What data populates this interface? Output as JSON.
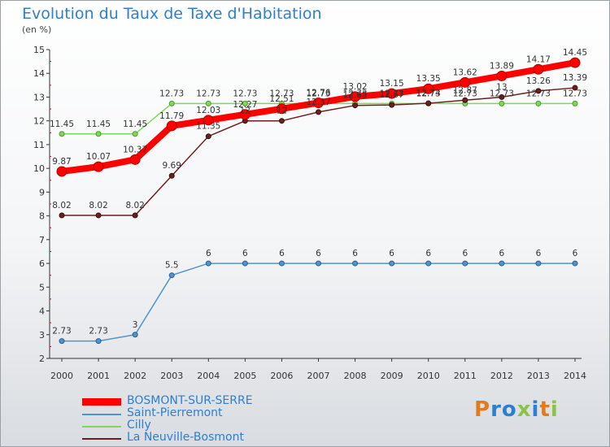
{
  "title": "Evolution du Taux de Taxe d'Habitation",
  "subtitle": "(en %)",
  "brand": {
    "text": "Proxiti"
  },
  "chart_data": {
    "type": "line",
    "title": "Evolution du Taux de Taxe d'Habitation",
    "ylabel": "(en %)",
    "ylim": [
      2,
      15
    ],
    "grid": false,
    "legend_position": "bottom",
    "x": [
      "2000",
      "2001",
      "2002",
      "2003",
      "2004",
      "2005",
      "2006",
      "2007",
      "2008",
      "2009",
      "2010",
      "2011",
      "2012",
      "2013",
      "2014"
    ],
    "yticks": [
      "2",
      "3",
      "4",
      "5",
      "6",
      "7",
      "8",
      "9",
      "10",
      "11",
      "12",
      "13",
      "14",
      "15"
    ],
    "series": [
      {
        "name": "BOSMONT-SUR-SERRE",
        "color": "#ff0000",
        "values": [
          9.87,
          10.07,
          10.37,
          11.79,
          12.03,
          12.27,
          12.51,
          12.76,
          13.02,
          13.15,
          13.35,
          13.62,
          13.89,
          14.17,
          14.45
        ],
        "labels": [
          "9.87",
          "10.07",
          "10.37",
          "11.79",
          "12.03",
          "12.27",
          "12.51",
          "12.76",
          "13.02",
          "13.15",
          "13.35",
          "13.62",
          "13.89",
          "14.17",
          "14.45"
        ]
      },
      {
        "name": "Saint-Pierremont",
        "color": "#4f94cd",
        "values": [
          2.73,
          2.73,
          3,
          5.5,
          6,
          6,
          6,
          6,
          6,
          6,
          6,
          6,
          6,
          6,
          6
        ],
        "labels": [
          "2.73",
          "2.73",
          "3",
          "5.5",
          "6",
          "6",
          "6",
          "6",
          "6",
          "6",
          "6",
          "6",
          "6",
          "6",
          "6"
        ]
      },
      {
        "name": "Cilly",
        "color": "#7ed957",
        "values": [
          11.45,
          11.45,
          11.45,
          12.73,
          12.73,
          12.73,
          12.73,
          12.73,
          12.73,
          12.73,
          12.73,
          12.73,
          12.73,
          12.73,
          12.73
        ],
        "labels": [
          "11.45",
          "11.45",
          "11.45",
          "12.73",
          "12.73",
          "12.73",
          "12.73",
          "12.73",
          "12.73",
          "12.73",
          "12.73",
          "12.73",
          "12.73",
          "12.73",
          "12.73"
        ]
      },
      {
        "name": "La Neuville-Bosmont",
        "color": "#6b1f1f",
        "values": [
          8.02,
          8.02,
          8.02,
          9.69,
          11.35,
          12,
          12,
          12.37,
          12.65,
          12.67,
          12.74,
          12.87,
          13,
          13.26,
          13.39
        ],
        "labels": [
          "8.02",
          "8.02",
          "8.02",
          "9.69",
          "11.35",
          "12",
          "12",
          "12.37",
          "12.65",
          "12.67",
          "12.74",
          "12.87",
          "13",
          "13.26",
          "13.39"
        ]
      }
    ]
  }
}
